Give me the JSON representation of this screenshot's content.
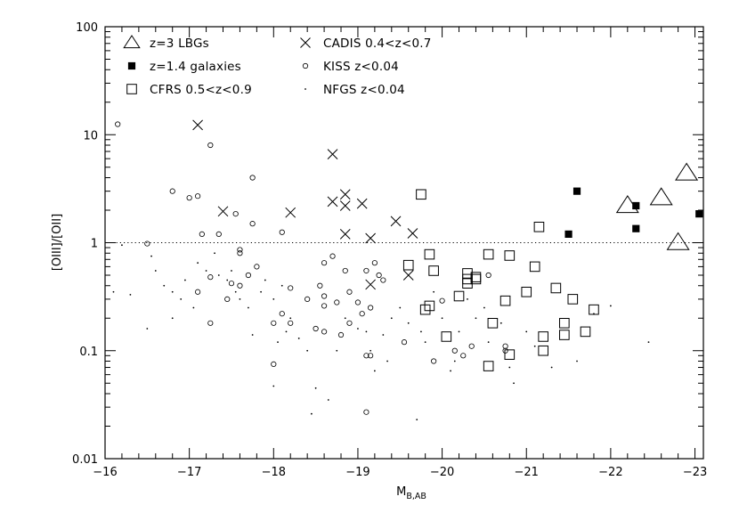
{
  "chart_data": {
    "type": "scatter",
    "title": "",
    "xlabel": "M",
    "xlabel_sub": "B,AB",
    "ylabel": "[OIII]/[OII]",
    "x_scale": "linear",
    "y_scale": "log",
    "xlim": [
      -16,
      -23.1
    ],
    "ylim": [
      0.01,
      100
    ],
    "x_ticks": [
      -16,
      -17,
      -18,
      -19,
      -20,
      -21,
      -22,
      -23
    ],
    "x_tick_labels": [
      "−16",
      "−17",
      "−18",
      "−19",
      "−20",
      "−21",
      "−22",
      "−23"
    ],
    "y_ticks": [
      0.01,
      0.1,
      1,
      10,
      100
    ],
    "y_tick_labels": [
      "0.01",
      "0.1",
      "1",
      "10",
      "100"
    ],
    "grid": false,
    "legend_position": "top-left",
    "reference_line": {
      "y": 1,
      "style": "dotted"
    },
    "series": [
      {
        "name": "z=3 LBGs",
        "marker": "triangle",
        "points": [
          [
            -22.2,
            2.2
          ],
          [
            -22.6,
            2.6
          ],
          [
            -22.9,
            4.4
          ],
          [
            -22.8,
            1.0
          ]
        ]
      },
      {
        "name": "z=1.4 galaxies",
        "marker": "filled-square",
        "points": [
          [
            -21.6,
            3.0
          ],
          [
            -21.5,
            1.2
          ],
          [
            -22.3,
            2.2
          ],
          [
            -22.3,
            1.35
          ],
          [
            -23.05,
            1.85
          ]
        ]
      },
      {
        "name": "CFRS 0.5<z<0.9",
        "marker": "square",
        "points": [
          [
            -19.75,
            2.8
          ],
          [
            -21.15,
            1.4
          ],
          [
            -19.6,
            0.62
          ],
          [
            -19.85,
            0.78
          ],
          [
            -19.9,
            0.55
          ],
          [
            -20.55,
            0.78
          ],
          [
            -20.8,
            0.76
          ],
          [
            -20.3,
            0.52
          ],
          [
            -20.3,
            0.46
          ],
          [
            -20.3,
            0.42
          ],
          [
            -20.4,
            0.48
          ],
          [
            -20.4,
            0.46
          ],
          [
            -21.1,
            0.6
          ],
          [
            -20.2,
            0.32
          ],
          [
            -19.85,
            0.26
          ],
          [
            -19.8,
            0.24
          ],
          [
            -20.05,
            0.135
          ],
          [
            -20.6,
            0.18
          ],
          [
            -20.75,
            0.29
          ],
          [
            -21.0,
            0.35
          ],
          [
            -21.35,
            0.38
          ],
          [
            -21.55,
            0.3
          ],
          [
            -21.45,
            0.18
          ],
          [
            -21.45,
            0.14
          ],
          [
            -21.8,
            0.24
          ],
          [
            -21.2,
            0.135
          ],
          [
            -21.2,
            0.1
          ],
          [
            -20.55,
            0.072
          ],
          [
            -20.8,
            0.092
          ],
          [
            -21.7,
            0.15
          ]
        ]
      },
      {
        "name": "CADIS 0.4<z<0.7",
        "marker": "cross",
        "points": [
          [
            -17.1,
            12.3
          ],
          [
            -18.7,
            6.6
          ],
          [
            -17.4,
            1.95
          ],
          [
            -18.2,
            1.9
          ],
          [
            -18.7,
            2.4
          ],
          [
            -18.85,
            2.8
          ],
          [
            -18.85,
            2.2
          ],
          [
            -19.05,
            2.3
          ],
          [
            -18.85,
            1.2
          ],
          [
            -19.15,
            1.1
          ],
          [
            -19.45,
            1.58
          ],
          [
            -19.65,
            1.22
          ],
          [
            -19.6,
            0.5
          ],
          [
            -19.15,
            0.41
          ]
        ]
      },
      {
        "name": "KISS z<0.04",
        "marker": "circle",
        "points": [
          [
            -16.15,
            12.5
          ],
          [
            -17.25,
            8.0
          ],
          [
            -16.8,
            3.0
          ],
          [
            -17.0,
            2.6
          ],
          [
            -17.1,
            2.7
          ],
          [
            -17.55,
            1.85
          ],
          [
            -17.75,
            4.0
          ],
          [
            -17.75,
            1.5
          ],
          [
            -17.15,
            1.2
          ],
          [
            -17.35,
            1.2
          ],
          [
            -16.5,
            0.98
          ],
          [
            -17.6,
            0.86
          ],
          [
            -17.6,
            0.8
          ],
          [
            -18.1,
            1.25
          ],
          [
            -17.8,
            0.6
          ],
          [
            -17.7,
            0.5
          ],
          [
            -17.5,
            0.42
          ],
          [
            -17.45,
            0.3
          ],
          [
            -17.25,
            0.48
          ],
          [
            -17.6,
            0.4
          ],
          [
            -17.1,
            0.35
          ],
          [
            -18.2,
            0.38
          ],
          [
            -18.4,
            0.3
          ],
          [
            -18.55,
            0.4
          ],
          [
            -18.6,
            0.32
          ],
          [
            -18.6,
            0.65
          ],
          [
            -18.6,
            0.26
          ],
          [
            -18.7,
            0.75
          ],
          [
            -18.75,
            0.28
          ],
          [
            -18.85,
            0.55
          ],
          [
            -18.9,
            0.35
          ],
          [
            -19.0,
            0.28
          ],
          [
            -19.05,
            0.22
          ],
          [
            -19.1,
            0.55
          ],
          [
            -19.2,
            0.65
          ],
          [
            -19.15,
            0.25
          ],
          [
            -19.25,
            0.5
          ],
          [
            -19.3,
            0.45
          ],
          [
            -18.1,
            0.22
          ],
          [
            -18.2,
            0.18
          ],
          [
            -18.0,
            0.18
          ],
          [
            -18.5,
            0.16
          ],
          [
            -18.6,
            0.15
          ],
          [
            -18.8,
            0.14
          ],
          [
            -18.9,
            0.18
          ],
          [
            -19.1,
            0.09
          ],
          [
            -19.15,
            0.09
          ],
          [
            -19.55,
            0.12
          ],
          [
            -19.9,
            0.08
          ],
          [
            -20.0,
            0.29
          ],
          [
            -20.15,
            0.1
          ],
          [
            -20.25,
            0.09
          ],
          [
            -20.35,
            0.11
          ],
          [
            -20.55,
            0.5
          ],
          [
            -20.75,
            0.11
          ],
          [
            -20.75,
            0.1
          ],
          [
            -17.25,
            0.18
          ],
          [
            -18.0,
            0.075
          ],
          [
            -19.1,
            0.027
          ]
        ]
      },
      {
        "name": "NFGS z<0.04",
        "marker": "dot",
        "points": [
          [
            -16.2,
            0.95
          ],
          [
            -16.55,
            0.75
          ],
          [
            -16.6,
            0.55
          ],
          [
            -16.7,
            0.4
          ],
          [
            -16.8,
            0.35
          ],
          [
            -16.9,
            0.3
          ],
          [
            -16.95,
            0.45
          ],
          [
            -16.5,
            0.16
          ],
          [
            -16.8,
            0.2
          ],
          [
            -17.05,
            0.25
          ],
          [
            -17.1,
            0.65
          ],
          [
            -17.2,
            0.55
          ],
          [
            -17.3,
            0.8
          ],
          [
            -17.35,
            0.5
          ],
          [
            -17.45,
            0.45
          ],
          [
            -17.5,
            0.55
          ],
          [
            -17.55,
            0.35
          ],
          [
            -17.6,
            0.3
          ],
          [
            -17.7,
            0.25
          ],
          [
            -17.75,
            0.14
          ],
          [
            -17.85,
            0.35
          ],
          [
            -17.9,
            0.45
          ],
          [
            -18.0,
            0.3
          ],
          [
            -18.05,
            0.12
          ],
          [
            -18.1,
            0.4
          ],
          [
            -18.15,
            0.15
          ],
          [
            -18.2,
            0.2
          ],
          [
            -18.3,
            0.13
          ],
          [
            -18.4,
            0.1
          ],
          [
            -18.5,
            0.045
          ],
          [
            -18.45,
            0.026
          ],
          [
            -18.65,
            0.035
          ],
          [
            -18.0,
            0.047
          ],
          [
            -18.75,
            0.1
          ],
          [
            -18.85,
            0.2
          ],
          [
            -19.0,
            0.16
          ],
          [
            -19.1,
            0.15
          ],
          [
            -19.15,
            0.1
          ],
          [
            -19.2,
            0.065
          ],
          [
            -19.3,
            0.14
          ],
          [
            -19.35,
            0.08
          ],
          [
            -19.4,
            0.2
          ],
          [
            -19.5,
            0.25
          ],
          [
            -19.6,
            0.18
          ],
          [
            -19.7,
            0.023
          ],
          [
            -19.75,
            0.15
          ],
          [
            -19.8,
            0.12
          ],
          [
            -19.9,
            0.35
          ],
          [
            -20.0,
            0.2
          ],
          [
            -20.1,
            0.065
          ],
          [
            -20.15,
            0.08
          ],
          [
            -20.2,
            0.15
          ],
          [
            -20.3,
            0.3
          ],
          [
            -20.4,
            0.2
          ],
          [
            -20.5,
            0.25
          ],
          [
            -20.55,
            0.12
          ],
          [
            -20.7,
            0.18
          ],
          [
            -20.8,
            0.07
          ],
          [
            -20.85,
            0.05
          ],
          [
            -21.0,
            0.15
          ],
          [
            -21.1,
            0.11
          ],
          [
            -21.3,
            0.07
          ],
          [
            -21.6,
            0.08
          ],
          [
            -21.8,
            0.22
          ],
          [
            -22.0,
            0.26
          ],
          [
            -22.45,
            0.12
          ],
          [
            -16.1,
            0.35
          ],
          [
            -16.3,
            0.33
          ]
        ]
      }
    ]
  }
}
